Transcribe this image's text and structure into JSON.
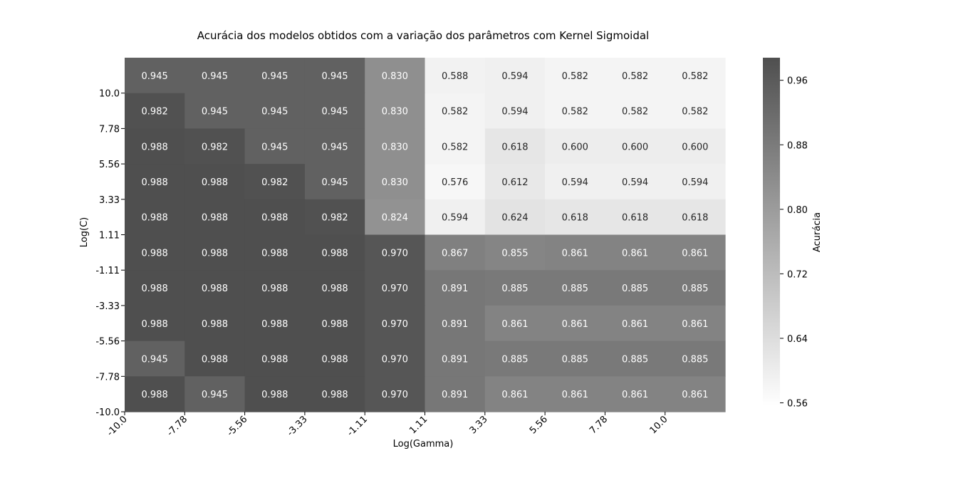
{
  "chart_data": {
    "type": "heatmap",
    "title": "Acurácia dos modelos obtidos com a variação dos parâmetros com Kernel Sigmoidal",
    "xlabel": "Log(Gamma)",
    "ylabel": "Log(C)",
    "x_tick_labels": [
      "-10.0",
      "-7.78",
      "-5.56",
      "-3.33",
      "-1.11",
      "1.11",
      "3.33",
      "5.56",
      "7.78",
      "10.0"
    ],
    "y_tick_labels": [
      "10.0",
      "7.78",
      "5.56",
      "3.33",
      "1.11",
      "-1.11",
      "-3.33",
      "-5.56",
      "-7.78",
      "-10.0"
    ],
    "values": [
      [
        0.945,
        0.945,
        0.945,
        0.945,
        0.83,
        0.588,
        0.594,
        0.582,
        0.582,
        0.582
      ],
      [
        0.982,
        0.945,
        0.945,
        0.945,
        0.83,
        0.582,
        0.594,
        0.582,
        0.582,
        0.582
      ],
      [
        0.988,
        0.982,
        0.945,
        0.945,
        0.83,
        0.582,
        0.618,
        0.6,
        0.6,
        0.6
      ],
      [
        0.988,
        0.988,
        0.982,
        0.945,
        0.83,
        0.576,
        0.612,
        0.594,
        0.594,
        0.594
      ],
      [
        0.988,
        0.988,
        0.988,
        0.982,
        0.824,
        0.594,
        0.624,
        0.618,
        0.618,
        0.618
      ],
      [
        0.988,
        0.988,
        0.988,
        0.988,
        0.97,
        0.867,
        0.855,
        0.861,
        0.861,
        0.861
      ],
      [
        0.988,
        0.988,
        0.988,
        0.988,
        0.97,
        0.891,
        0.885,
        0.885,
        0.885,
        0.885
      ],
      [
        0.988,
        0.988,
        0.988,
        0.988,
        0.97,
        0.891,
        0.861,
        0.861,
        0.861,
        0.861
      ],
      [
        0.945,
        0.988,
        0.988,
        0.988,
        0.97,
        0.891,
        0.885,
        0.885,
        0.885,
        0.885
      ],
      [
        0.988,
        0.945,
        0.988,
        0.988,
        0.97,
        0.891,
        0.861,
        0.861,
        0.861,
        0.861
      ]
    ],
    "value_format": "3 decimals",
    "colorbar": {
      "label": "Acurácia",
      "range": [
        0.556,
        0.988
      ],
      "ticks": [
        0.96,
        0.88,
        0.8,
        0.72,
        0.64,
        0.56
      ],
      "tick_labels": [
        "0.96",
        "0.88",
        "0.80",
        "0.72",
        "0.64",
        "0.56"
      ],
      "color_high": "#4f4f4f",
      "color_low": "#ffffff",
      "placement": "right"
    },
    "annotation_text_dark": "#262626",
    "annotation_text_light": "#ffffff",
    "grid": false
  }
}
